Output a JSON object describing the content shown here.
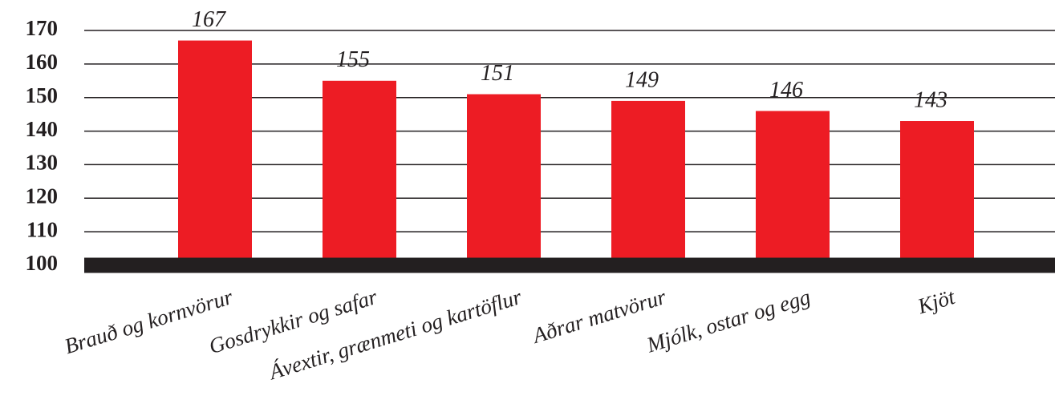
{
  "chart_data": {
    "type": "bar",
    "categories": [
      "Brauð og kornvörur",
      "Gosdrykkir og safar",
      "Ávextir, grænmeti og kartöflur",
      "Aðrar matvörur",
      "Mjólk, ostar og egg",
      "Kjöt"
    ],
    "values": [
      167,
      155,
      151,
      149,
      146,
      143
    ],
    "color": "#ed1c24",
    "ylim": [
      100,
      170
    ],
    "yticks": [
      100,
      110,
      120,
      130,
      140,
      150,
      160,
      170
    ],
    "grid": true
  }
}
